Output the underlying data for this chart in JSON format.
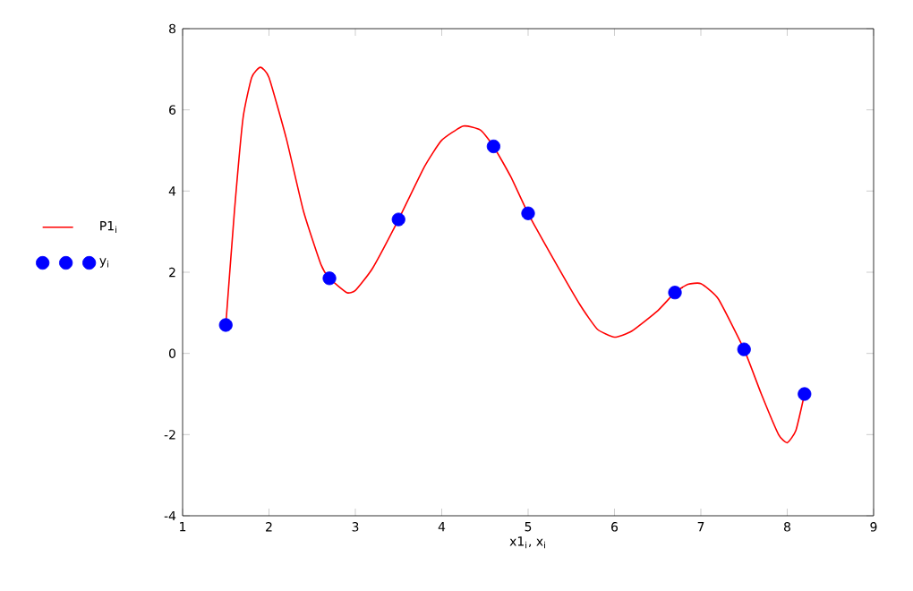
{
  "chart_data": {
    "type": "line",
    "xlabel": "x1$_{i}$, x$_{i}$",
    "xlim": [
      1,
      9
    ],
    "ylim": [
      -4,
      8
    ],
    "xticks": [
      1,
      2,
      3,
      4,
      5,
      6,
      7,
      8,
      9
    ],
    "yticks": [
      -4,
      -2,
      0,
      2,
      4,
      6,
      8
    ],
    "legend": "left",
    "grid": false,
    "series": [
      {
        "name": "P1$_{i}$",
        "color": "#ff0000",
        "line_style": "solid",
        "x": [
          1.5,
          1.6,
          1.7,
          1.8,
          1.9,
          2.0,
          2.2,
          2.4,
          2.6,
          2.7,
          2.9,
          3.0,
          3.2,
          3.5,
          3.8,
          4.0,
          4.25,
          4.45,
          4.6,
          4.8,
          5.0,
          5.3,
          5.6,
          5.8,
          6.0,
          6.2,
          6.5,
          6.7,
          6.85,
          7.0,
          7.2,
          7.5,
          7.7,
          7.9,
          8.0,
          8.1,
          8.2
        ],
        "values": [
          0.7,
          3.5,
          5.8,
          6.8,
          7.05,
          6.8,
          5.3,
          3.5,
          2.2,
          1.85,
          1.5,
          1.55,
          2.1,
          3.3,
          4.6,
          5.25,
          5.6,
          5.5,
          5.1,
          4.35,
          3.45,
          2.3,
          1.2,
          0.6,
          0.4,
          0.55,
          1.05,
          1.5,
          1.7,
          1.72,
          1.35,
          0.1,
          -1.0,
          -2.0,
          -2.2,
          -1.9,
          -1.0
        ]
      },
      {
        "name": "y$_{i}$",
        "type": "scatter",
        "marker": "circle",
        "color": "#0000ff",
        "x": [
          1.5,
          2.7,
          3.5,
          4.6,
          5.0,
          6.7,
          7.5,
          8.2
        ],
        "values": [
          0.7,
          1.85,
          3.3,
          5.1,
          3.45,
          1.5,
          0.1,
          -1.0
        ]
      }
    ]
  }
}
